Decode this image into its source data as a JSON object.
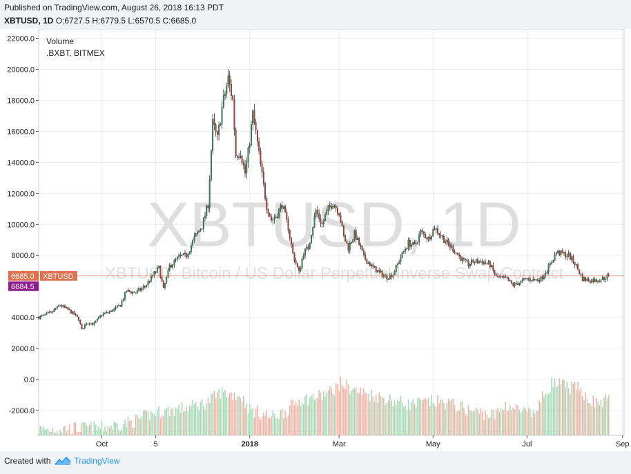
{
  "header": {
    "published": "Published on TradingView.com, August 26, 2018 16:13 PDT",
    "symbol": "XBTUSD, 1D",
    "ohlc": "O:6727.5 H:6779.5 L:6570.5 C:6685.0"
  },
  "legend": {
    "volume": "Volume",
    "volume_source": ".BXBT, BITMEX"
  },
  "watermark": {
    "big": "XBTUSD, 1D",
    "sub": "XBTUSD: Bitcoin / US Dollar Perpetual Inverse Swap Contract"
  },
  "price_tags": {
    "last": "6685.0",
    "last_label": "XBTUSD",
    "other": "6684.5"
  },
  "footer": {
    "created_with": "Created with",
    "brand": "TradingView"
  },
  "colors": {
    "up": "#2e8b57",
    "down": "#c0392b",
    "wick": "#333333",
    "vol_up": "#a6d8b6",
    "vol_down": "#f2b2a4",
    "last_tag": "#e0714f",
    "other_tag": "#8e1e8e",
    "grid": "#e9ecef"
  },
  "chart_data": {
    "type": "candlestick",
    "y_axis_ticks": [
      "22000.0",
      "20000.0",
      "18000.0",
      "16000.0",
      "14000.0",
      "12000.0",
      "10000.0",
      "8000.0",
      "4000.0",
      "2000.0",
      "0.0",
      "-2000.0"
    ],
    "ylim": [
      -3600,
      22600
    ],
    "x_ticks": [
      {
        "label": "Oct",
        "day": 0
      },
      {
        "label": "5",
        "day": 35
      },
      {
        "label": "2018",
        "day": 96
      },
      {
        "label": "Mar",
        "day": 154
      },
      {
        "label": "May",
        "day": 215
      },
      {
        "label": "Jul",
        "day": 276
      },
      {
        "label": "Sep",
        "day": 338
      }
    ],
    "xlim_days": [
      -41,
      339
    ],
    "last_day": 329,
    "price_keyframes": [
      [
        -41,
        4000
      ],
      [
        -33,
        4300
      ],
      [
        -27,
        4800
      ],
      [
        -22,
        4500
      ],
      [
        -18,
        4200
      ],
      [
        -15,
        3900
      ],
      [
        -13,
        3200
      ],
      [
        -10,
        3650
      ],
      [
        -5,
        3600
      ],
      [
        0,
        4200
      ],
      [
        6,
        4400
      ],
      [
        12,
        4800
      ],
      [
        16,
        5700
      ],
      [
        22,
        5600
      ],
      [
        28,
        6000
      ],
      [
        33,
        6700
      ],
      [
        37,
        7200
      ],
      [
        40,
        5800
      ],
      [
        44,
        7300
      ],
      [
        50,
        7900
      ],
      [
        55,
        8000
      ],
      [
        60,
        9100
      ],
      [
        65,
        9900
      ],
      [
        69,
        11300
      ],
      [
        72,
        16500
      ],
      [
        75,
        15500
      ],
      [
        78,
        17500
      ],
      [
        82,
        19400
      ],
      [
        85,
        18000
      ],
      [
        87,
        14500
      ],
      [
        90,
        14700
      ],
      [
        93,
        13300
      ],
      [
        95,
        14600
      ],
      [
        98,
        17100
      ],
      [
        100,
        15900
      ],
      [
        103,
        13800
      ],
      [
        107,
        11200
      ],
      [
        110,
        10300
      ],
      [
        113,
        10500
      ],
      [
        117,
        11300
      ],
      [
        121,
        9800
      ],
      [
        124,
        8100
      ],
      [
        128,
        6900
      ],
      [
        131,
        8200
      ],
      [
        134,
        8500
      ],
      [
        139,
        10900
      ],
      [
        143,
        10000
      ],
      [
        147,
        11000
      ],
      [
        150,
        11400
      ],
      [
        154,
        10800
      ],
      [
        157,
        9200
      ],
      [
        160,
        8500
      ],
      [
        164,
        9400
      ],
      [
        167,
        8700
      ],
      [
        170,
        7900
      ],
      [
        175,
        7300
      ],
      [
        180,
        6900
      ],
      [
        185,
        6600
      ],
      [
        189,
        6800
      ],
      [
        194,
        7900
      ],
      [
        199,
        8800
      ],
      [
        203,
        8600
      ],
      [
        207,
        9500
      ],
      [
        212,
        9100
      ],
      [
        216,
        9800
      ],
      [
        220,
        9300
      ],
      [
        224,
        8800
      ],
      [
        229,
        8300
      ],
      [
        234,
        7700
      ],
      [
        238,
        7400
      ],
      [
        241,
        7600
      ],
      [
        247,
        7600
      ],
      [
        252,
        7400
      ],
      [
        256,
        6600
      ],
      [
        262,
        6500
      ],
      [
        267,
        6100
      ],
      [
        272,
        6300
      ],
      [
        276,
        6500
      ],
      [
        281,
        6400
      ],
      [
        285,
        6500
      ],
      [
        291,
        7400
      ],
      [
        295,
        8200
      ],
      [
        299,
        8100
      ],
      [
        303,
        8000
      ],
      [
        307,
        7500
      ],
      [
        312,
        6500
      ],
      [
        316,
        6400
      ],
      [
        321,
        6400
      ],
      [
        325,
        6500
      ],
      [
        329,
        6685
      ]
    ],
    "volume_keyframes": [
      [
        -41,
        -3400
      ],
      [
        -10,
        -3300
      ],
      [
        0,
        -3300
      ],
      [
        20,
        -2900
      ],
      [
        35,
        -2300
      ],
      [
        55,
        -2000
      ],
      [
        67,
        -1700
      ],
      [
        72,
        -1400
      ],
      [
        77,
        -1000
      ],
      [
        82,
        -1100
      ],
      [
        90,
        -1200
      ],
      [
        96,
        -2100
      ],
      [
        110,
        -2600
      ],
      [
        120,
        -2200
      ],
      [
        128,
        -1500
      ],
      [
        140,
        -1300
      ],
      [
        150,
        -900
      ],
      [
        155,
        -400
      ],
      [
        165,
        -900
      ],
      [
        180,
        -1300
      ],
      [
        200,
        -1800
      ],
      [
        215,
        -1600
      ],
      [
        225,
        -1700
      ],
      [
        240,
        -2200
      ],
      [
        255,
        -2500
      ],
      [
        262,
        -1800
      ],
      [
        272,
        -2200
      ],
      [
        280,
        -2500
      ],
      [
        287,
        -1200
      ],
      [
        292,
        -400
      ],
      [
        300,
        -600
      ],
      [
        310,
        -800
      ],
      [
        320,
        -1700
      ],
      [
        329,
        -1500
      ]
    ]
  }
}
